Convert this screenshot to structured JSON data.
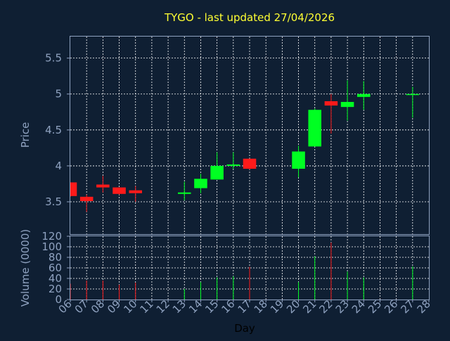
{
  "chart_data": {
    "type": "candlestick",
    "title": "TYGO - last updated 27/04/2026",
    "xlabel": "Day",
    "ylabel_price": "Price",
    "ylabel_volume": "Volume (0000)",
    "price_ylim": [
      3.05,
      5.8
    ],
    "price_yticks": [
      "3.5",
      "4",
      "4.5",
      "5",
      "5.5"
    ],
    "volume_ylim": [
      0,
      120
    ],
    "volume_yticks": [
      "0",
      "20",
      "40",
      "60",
      "80",
      "100",
      "120"
    ],
    "x_ticks": [
      "06",
      "07",
      "08",
      "09",
      "10",
      "11",
      "12",
      "13",
      "14",
      "15",
      "16",
      "17",
      "18",
      "19",
      "20",
      "21",
      "22",
      "23",
      "24",
      "25",
      "26",
      "27",
      "28"
    ],
    "grid": true,
    "colors": {
      "up": "#00ff22",
      "down": "#ff1a1a",
      "background": "#0f1f33",
      "title": "#ffff33",
      "axis": "#8fa2c0"
    },
    "candles": [
      {
        "day": "06",
        "open": 3.77,
        "high": 3.77,
        "low": 3.57,
        "close": 3.58,
        "volume": 30
      },
      {
        "day": "07",
        "open": 3.57,
        "high": 3.6,
        "low": 3.36,
        "close": 3.51,
        "volume": 36
      },
      {
        "day": "08",
        "open": 3.74,
        "high": 3.86,
        "low": 3.63,
        "close": 3.7,
        "volume": 36
      },
      {
        "day": "09",
        "open": 3.7,
        "high": 3.7,
        "low": 3.6,
        "close": 3.61,
        "volume": 28
      },
      {
        "day": "10",
        "open": 3.66,
        "high": 3.72,
        "low": 3.5,
        "close": 3.62,
        "volume": 32
      },
      {
        "day": "13",
        "open": 3.61,
        "high": 3.78,
        "low": 3.52,
        "close": 3.63,
        "volume": 20
      },
      {
        "day": "14",
        "open": 3.69,
        "high": 3.89,
        "low": 3.62,
        "close": 3.82,
        "volume": 33
      },
      {
        "day": "15",
        "open": 3.81,
        "high": 4.19,
        "low": 3.81,
        "close": 4.0,
        "volume": 42
      },
      {
        "day": "16",
        "open": 4.0,
        "high": 4.19,
        "low": 3.96,
        "close": 4.02,
        "volume": 44
      },
      {
        "day": "17",
        "open": 4.1,
        "high": 4.1,
        "low": 3.95,
        "close": 3.96,
        "volume": 62
      },
      {
        "day": "20",
        "open": 3.96,
        "high": 4.28,
        "low": 3.84,
        "close": 4.2,
        "volume": 33
      },
      {
        "day": "21",
        "open": 4.27,
        "high": 4.8,
        "low": 4.27,
        "close": 4.78,
        "volume": 82
      },
      {
        "day": "22",
        "open": 4.9,
        "high": 5.0,
        "low": 4.45,
        "close": 4.84,
        "volume": 108
      },
      {
        "day": "23",
        "open": 4.82,
        "high": 5.19,
        "low": 4.63,
        "close": 4.89,
        "volume": 53
      },
      {
        "day": "24",
        "open": 4.96,
        "high": 5.18,
        "low": 4.78,
        "close": 5.0,
        "volume": 42
      },
      {
        "day": "27",
        "open": 5.0,
        "high": 5.1,
        "low": 4.67,
        "close": 5.0,
        "volume": 63
      }
    ]
  }
}
